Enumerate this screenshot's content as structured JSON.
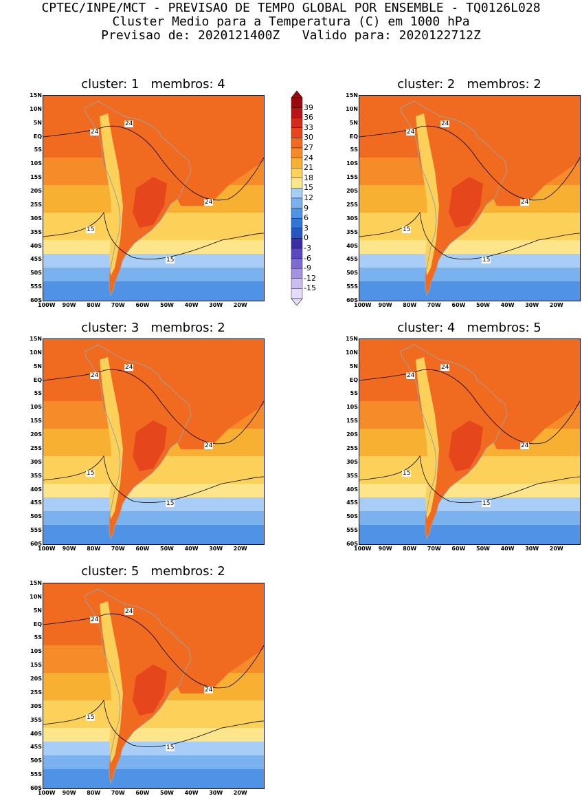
{
  "header": {
    "line1": "CPTEC/INPE/MCT - PREVISAO DE TEMPO GLOBAL POR ENSEMBLE - TQ0126L028",
    "line2": "Cluster Medio para a Temperatura (C) em 1000 hPa",
    "line3": "Previsao de: 2020121400Z   Valido para: 2020122712Z"
  },
  "panels": [
    {
      "title": "cluster: 1   membros: 4"
    },
    {
      "title": "cluster: 2   membros: 2"
    },
    {
      "title": "cluster: 3   membros: 2"
    },
    {
      "title": "cluster: 4   membros: 5"
    },
    {
      "title": "cluster: 5   membros: 2"
    }
  ],
  "lat_labels": [
    "15N",
    "10N",
    "5N",
    "EQ",
    "5S",
    "10S",
    "15S",
    "20S",
    "25S",
    "30S",
    "35S",
    "40S",
    "45S",
    "50S",
    "55S",
    "60S"
  ],
  "lon_labels": [
    "100W",
    "90W",
    "80W",
    "70W",
    "60W",
    "50W",
    "40W",
    "30W",
    "20W"
  ],
  "contour_labels": [
    "24",
    "15"
  ],
  "colorbar": {
    "labels": [
      "39",
      "36",
      "33",
      "30",
      "27",
      "24",
      "21",
      "18",
      "15",
      "12",
      "9",
      "6",
      "3",
      "0",
      "-3",
      "-6",
      "-9",
      "-12",
      "-15"
    ],
    "colors": [
      "#9b0a0a",
      "#b81414",
      "#d42a1a",
      "#e6461c",
      "#f06a20",
      "#f58c28",
      "#f8b032",
      "#fbd15a",
      "#fce58a",
      "#a8cdf7",
      "#7ab2f0",
      "#4f93e6",
      "#3275d9",
      "#2257c4",
      "#3a2fa8",
      "#5a48c0",
      "#7d6ad2",
      "#a692e3",
      "#cbbdf0",
      "#e6dcfa"
    ],
    "land_outline_color": "#a0a0a0"
  }
}
